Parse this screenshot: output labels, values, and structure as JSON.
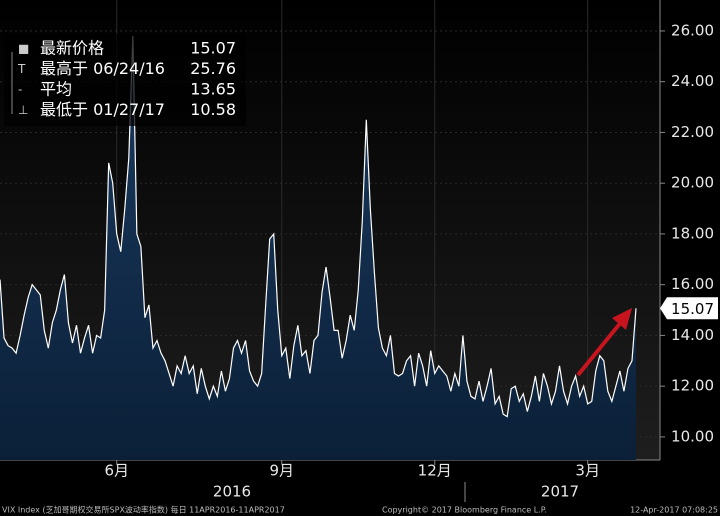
{
  "chart_data": {
    "type": "area",
    "series": [
      {
        "name": "VIX Index",
        "color": "#ffffff",
        "values": [
          16.2,
          13.9,
          13.6,
          13.5,
          13.3,
          14,
          14.8,
          15.5,
          16,
          15.8,
          15.6,
          14.2,
          13.5,
          14.5,
          15,
          15.8,
          16.4,
          14.5,
          13.7,
          14.4,
          13.3,
          13.9,
          14.4,
          13.3,
          14,
          13.9,
          15,
          20.8,
          20,
          18,
          17.3,
          19,
          21,
          25.8,
          18,
          17.5,
          14.7,
          15.2,
          13.5,
          13.8,
          13.3,
          13,
          12.5,
          12,
          12.8,
          12.5,
          13.2,
          12.5,
          12.8,
          11.7,
          12.7,
          12,
          11.5,
          12,
          11.6,
          12.6,
          11.8,
          12.3,
          13.5,
          13.8,
          13.3,
          13.8,
          12.6,
          12.2,
          12,
          12.5,
          15.2,
          17.8,
          18,
          15,
          13.2,
          13.5,
          12.3,
          13.6,
          14.4,
          13.2,
          13.4,
          12.5,
          13.8,
          14,
          15.7,
          16.7,
          15.5,
          14.2,
          14.2,
          13.1,
          13.8,
          14.8,
          14.2,
          15.8,
          18.5,
          22.5,
          19,
          16.5,
          14.3,
          13.5,
          13.2,
          14,
          12.5,
          12.4,
          12.5,
          13,
          13.2,
          12,
          13.3,
          12.8,
          12,
          13.4,
          12.5,
          12.8,
          12.6,
          12.4,
          11.8,
          12.5,
          12,
          14,
          12.2,
          11.6,
          11.5,
          12.2,
          11.4,
          12,
          12.7,
          11.3,
          11.6,
          10.9,
          10.8,
          11.9,
          12,
          11.4,
          11.7,
          11,
          11.6,
          12.4,
          11.4,
          12.5,
          12,
          11.3,
          11.8,
          12.8,
          11.8,
          11.3,
          12,
          12.4,
          11.6,
          12,
          11.3,
          11.4,
          12.6,
          13.2,
          13,
          11.8,
          11.4,
          12,
          12.6,
          11.8,
          12.7,
          13,
          15.07
        ]
      }
    ],
    "categories": [
      null,
      null,
      null,
      null,
      null,
      null,
      null,
      null,
      null,
      null,
      null,
      null,
      null,
      null,
      null,
      null,
      null,
      null,
      null,
      null,
      null,
      null,
      null,
      null,
      null,
      null,
      null,
      null,
      null,
      "6月",
      null,
      null,
      null,
      null,
      null,
      null,
      null,
      null,
      null,
      null,
      null,
      null,
      null,
      null,
      null,
      null,
      null,
      null,
      null,
      null,
      null,
      null,
      null,
      null,
      null,
      null,
      null,
      null,
      null,
      null,
      null,
      null,
      null,
      null,
      null,
      null,
      null,
      null,
      null,
      null,
      "9月",
      null,
      null,
      null,
      null,
      null,
      null,
      null,
      null,
      null,
      null,
      null,
      null,
      null,
      null,
      null,
      null,
      null,
      null,
      null,
      null,
      null,
      null,
      null,
      null,
      null,
      null,
      null,
      null,
      null,
      null,
      null,
      null,
      null,
      null,
      null,
      null,
      null,
      "12月",
      null,
      null,
      null,
      null,
      null,
      null,
      null,
      null,
      null,
      null,
      null,
      null,
      null,
      null,
      null,
      null,
      null,
      null,
      null,
      null,
      null,
      null,
      null,
      null,
      null,
      null,
      null,
      null,
      null,
      null,
      null,
      null,
      null,
      null,
      null,
      null,
      null,
      "3月",
      null,
      null,
      null,
      null,
      null,
      null,
      null,
      null,
      null,
      null,
      null,
      null
    ],
    "year_labels": [
      "2016",
      "2017"
    ],
    "ylim": [
      9.09,
      27.22
    ],
    "yticks": [
      {
        "value": 10,
        "label": "10.00"
      },
      {
        "value": 12,
        "label": "12.00"
      },
      {
        "value": 14,
        "label": "14.00"
      },
      {
        "value": 16,
        "label": "16.00"
      },
      {
        "value": 18,
        "label": "18.00"
      },
      {
        "value": 20,
        "label": "20.00"
      },
      {
        "value": 22,
        "label": "22.00"
      },
      {
        "value": 24,
        "label": "24.00"
      },
      {
        "value": 26,
        "label": "26.00"
      }
    ],
    "grid": true,
    "legend": [
      {
        "label": "最新价格",
        "value": 15.07
      },
      {
        "label": "最高于 06/24/16",
        "value": 25.76
      },
      {
        "label": "平均",
        "value": 13.65
      },
      {
        "label": "最低于 01/27/17",
        "value": 10.58
      }
    ],
    "footer": {
      "left": "VIX Index (芝加哥期权交易所SPX波动率指数) 每日 11APR2016-11APR2017",
      "center": "Copyright© 2017 Bloomberg Finance L.P.",
      "right": "12-Apr-2017 07:08:25"
    }
  }
}
